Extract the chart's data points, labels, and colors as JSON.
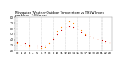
{
  "title": "Milwaukee Weather Outdoor Temperature vs THSW Index\nper Hour  (24 Hours)",
  "hours": [
    0,
    1,
    2,
    3,
    4,
    5,
    6,
    7,
    8,
    9,
    10,
    11,
    12,
    13,
    14,
    15,
    16,
    17,
    18,
    19,
    20,
    21,
    22,
    23
  ],
  "temp": [
    36,
    34,
    33,
    31,
    30,
    29,
    28,
    29,
    34,
    41,
    50,
    57,
    62,
    64,
    63,
    59,
    54,
    49,
    46,
    43,
    41,
    39,
    37,
    36
  ],
  "thsw": [
    33,
    31,
    29,
    28,
    26,
    25,
    24,
    27,
    33,
    43,
    55,
    63,
    70,
    73,
    70,
    64,
    57,
    50,
    46,
    44,
    41,
    38,
    35,
    33
  ],
  "temp_color": "#cc0000",
  "thsw_color": "#ff8800",
  "bg_color": "#ffffff",
  "grid_color": "#999999",
  "ylim": [
    20,
    80
  ],
  "yticks": [
    20,
    30,
    40,
    50,
    60,
    70,
    80
  ],
  "ytick_labels": [
    "20",
    "30",
    "40",
    "50",
    "60",
    "70",
    "80"
  ],
  "title_fontsize": 3.2,
  "tick_fontsize": 2.8,
  "marker_size": 0.9,
  "vgrid_positions": [
    0,
    3,
    6,
    9,
    12,
    15,
    18,
    21
  ]
}
